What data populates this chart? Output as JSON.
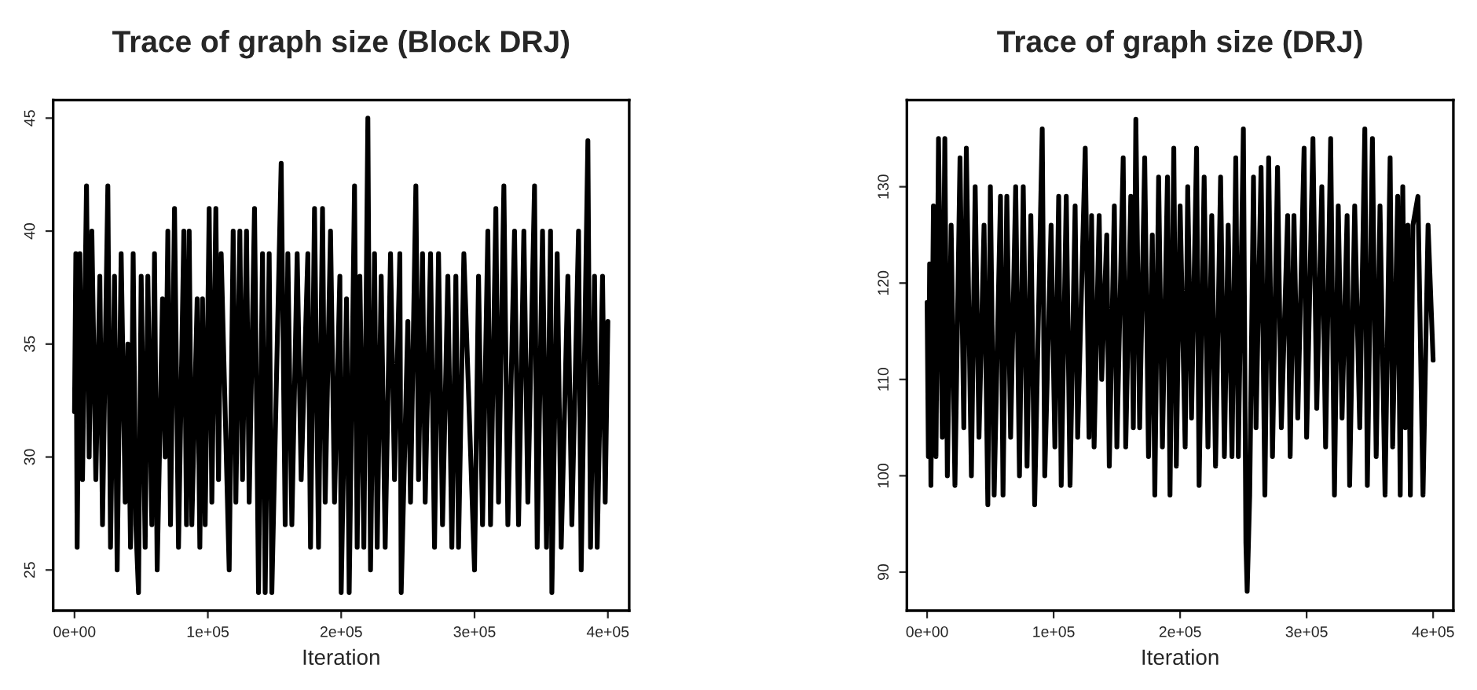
{
  "chart_data": [
    {
      "type": "line",
      "title": "Trace of graph size (Block DRJ)",
      "xlabel": "Iteration",
      "xlim": [
        -16000,
        416000
      ],
      "ylim": [
        23.2,
        45.8
      ],
      "xticks": [
        {
          "value": 0,
          "label": "0e+00"
        },
        {
          "value": 100000,
          "label": "1e+05"
        },
        {
          "value": 200000,
          "label": "2e+05"
        },
        {
          "value": 300000,
          "label": "3e+05"
        },
        {
          "value": 400000,
          "label": "4e+05"
        }
      ],
      "yticks": [
        25,
        30,
        35,
        40,
        45
      ],
      "grid": false,
      "line_style": "solid",
      "marker": "none",
      "series": [
        {
          "color": "#000000",
          "x": [
            0,
            1000,
            2000,
            4000,
            6000,
            9000,
            11000,
            13000,
            16000,
            19000,
            21000,
            25000,
            27000,
            30000,
            32000,
            35000,
            38000,
            40000,
            42000,
            44000,
            46000,
            48000,
            50000,
            53000,
            55000,
            58000,
            60000,
            62000,
            66000,
            68000,
            70000,
            72000,
            75000,
            78000,
            82000,
            84000,
            86000,
            88000,
            92000,
            94000,
            96000,
            98000,
            101000,
            103000,
            106000,
            108000,
            110000,
            116000,
            119000,
            121000,
            124000,
            126000,
            129000,
            131000,
            135000,
            138000,
            141000,
            143000,
            146000,
            148000,
            155000,
            158000,
            160000,
            163000,
            167000,
            170000,
            175000,
            177000,
            180000,
            183000,
            186000,
            188000,
            192000,
            195000,
            199000,
            200000,
            204000,
            206000,
            210000,
            212000,
            214000,
            217000,
            220000,
            222000,
            225000,
            227000,
            230000,
            233000,
            237000,
            240000,
            244000,
            245000,
            250000,
            252000,
            256000,
            258000,
            261000,
            263000,
            267000,
            270000,
            273000,
            276000,
            280000,
            283000,
            286000,
            288000,
            292000,
            300000,
            303000,
            306000,
            310000,
            312000,
            316000,
            318000,
            322000,
            325000,
            330000,
            333000,
            337000,
            340000,
            345000,
            347000,
            351000,
            354000,
            357000,
            358000,
            362000,
            365000,
            370000,
            373000,
            378000,
            380000,
            385000,
            387000,
            390000,
            392000,
            396000,
            398000,
            400000
          ],
          "values": [
            32,
            39,
            26,
            39,
            29,
            42,
            30,
            40,
            29,
            38,
            27,
            42,
            26,
            38,
            25,
            39,
            28,
            35,
            26,
            39,
            27,
            24,
            38,
            26,
            38,
            27,
            39,
            25,
            37,
            30,
            40,
            27,
            41,
            26,
            40,
            27,
            40,
            27,
            37,
            26,
            37,
            27,
            41,
            28,
            41,
            29,
            39,
            25,
            40,
            28,
            40,
            29,
            40,
            28,
            41,
            24,
            39,
            24,
            39,
            24,
            43,
            27,
            39,
            27,
            39,
            29,
            39,
            26,
            41,
            26,
            41,
            28,
            40,
            28,
            38,
            24,
            37,
            24,
            42,
            26,
            38,
            26,
            45,
            25,
            39,
            26,
            38,
            26,
            39,
            29,
            39,
            24,
            36,
            28,
            42,
            29,
            39,
            28,
            39,
            26,
            39,
            27,
            38,
            26,
            38,
            26,
            39,
            25,
            38,
            27,
            40,
            27,
            41,
            28,
            42,
            27,
            40,
            27,
            40,
            28,
            42,
            26,
            40,
            26,
            40,
            24,
            39,
            26,
            38,
            27,
            40,
            25,
            44,
            26,
            38,
            26,
            38,
            28,
            36
          ]
        }
      ]
    },
    {
      "type": "line",
      "title": "Trace of graph size (DRJ)",
      "xlabel": "Iteration",
      "xlim": [
        -16000,
        416000
      ],
      "ylim": [
        86.0,
        139.0
      ],
      "xticks": [
        {
          "value": 0,
          "label": "0e+00"
        },
        {
          "value": 100000,
          "label": "1e+05"
        },
        {
          "value": 200000,
          "label": "2e+05"
        },
        {
          "value": 300000,
          "label": "3e+05"
        },
        {
          "value": 400000,
          "label": "4e+05"
        }
      ],
      "yticks": [
        90,
        100,
        110,
        120,
        130
      ],
      "grid": false,
      "line_style": "solid",
      "marker": "none",
      "series": [
        {
          "color": "#000000",
          "x": [
            0,
            1000,
            2000,
            3000,
            5000,
            7000,
            9000,
            12000,
            14000,
            16000,
            19000,
            22000,
            26000,
            29000,
            31000,
            35000,
            38000,
            41000,
            45000,
            48000,
            50000,
            53000,
            58000,
            60000,
            63000,
            66000,
            70000,
            73000,
            76000,
            79000,
            82000,
            85000,
            91000,
            93000,
            98000,
            101000,
            104000,
            106000,
            110000,
            113000,
            117000,
            119000,
            125000,
            128000,
            130000,
            132000,
            136000,
            138000,
            142000,
            144000,
            148000,
            150000,
            155000,
            157000,
            161000,
            163000,
            165000,
            168000,
            172000,
            175000,
            178000,
            180000,
            183000,
            186000,
            190000,
            192000,
            195000,
            197000,
            200000,
            204000,
            206000,
            209000,
            213000,
            215000,
            219000,
            222000,
            225000,
            228000,
            232000,
            235000,
            238000,
            241000,
            244000,
            246000,
            250000,
            252000,
            253000,
            255000,
            258000,
            260000,
            264000,
            267000,
            270000,
            273000,
            277000,
            280000,
            285000,
            287000,
            290000,
            293000,
            298000,
            300000,
            305000,
            308000,
            312000,
            315000,
            319000,
            322000,
            325000,
            328000,
            332000,
            334000,
            338000,
            342000,
            346000,
            348000,
            352000,
            355000,
            358000,
            362000,
            366000,
            368000,
            372000,
            374000,
            376000,
            378000,
            380000,
            382000,
            384000,
            388000,
            392000,
            396000,
            400000
          ],
          "values": [
            118,
            102,
            122,
            99,
            128,
            102,
            135,
            104,
            135,
            100,
            126,
            99,
            133,
            105,
            134,
            100,
            130,
            104,
            126,
            97,
            130,
            98,
            129,
            98,
            129,
            104,
            130,
            100,
            130,
            101,
            127,
            97,
            136,
            100,
            126,
            103,
            129,
            99,
            129,
            99,
            128,
            104,
            134,
            104,
            127,
            103,
            127,
            110,
            125,
            101,
            128,
            103,
            133,
            103,
            129,
            105,
            137,
            105,
            133,
            102,
            125,
            98,
            131,
            103,
            131,
            98,
            134,
            101,
            128,
            103,
            130,
            106,
            134,
            99,
            131,
            103,
            127,
            101,
            131,
            102,
            126,
            102,
            133,
            102,
            136,
            93,
            88,
            98,
            131,
            105,
            132,
            98,
            133,
            102,
            132,
            105,
            127,
            102,
            127,
            106,
            134,
            104,
            135,
            107,
            130,
            103,
            135,
            98,
            128,
            106,
            127,
            99,
            128,
            105,
            136,
            99,
            135,
            102,
            128,
            98,
            133,
            103,
            129,
            98,
            130,
            105,
            126,
            98,
            126,
            129,
            98,
            126,
            112
          ]
        }
      ]
    }
  ]
}
